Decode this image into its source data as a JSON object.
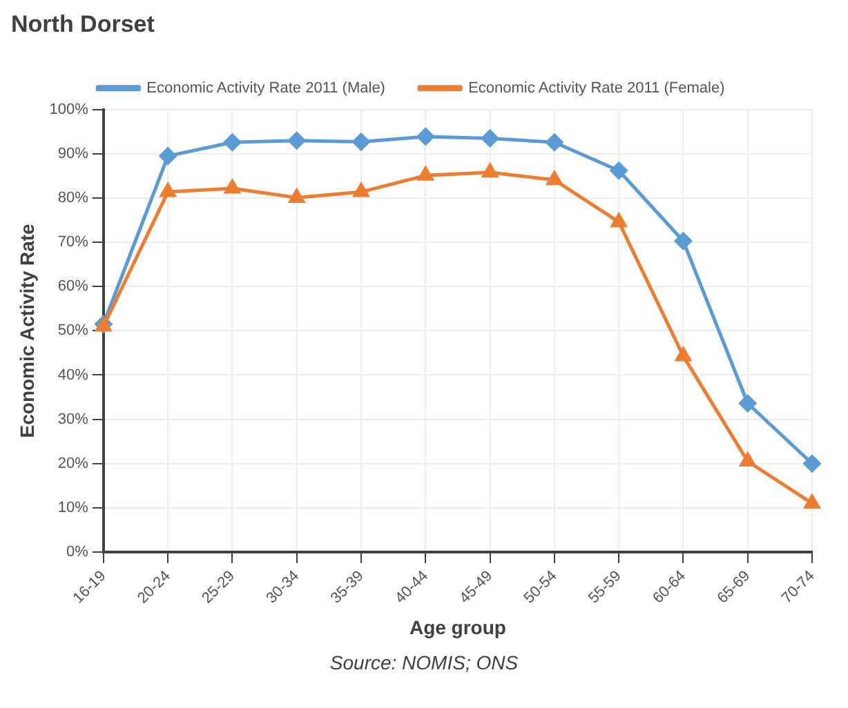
{
  "chart_data": {
    "type": "line",
    "title": "North Dorset",
    "xlabel": "Age group",
    "ylabel": "Economic Activity Rate",
    "annotations": [
      "Source: NOMIS; ONS"
    ],
    "categories": [
      "16-19",
      "20-24",
      "25-29",
      "30-34",
      "35-39",
      "40-44",
      "45-49",
      "50-54",
      "55-59",
      "60-64",
      "65-69",
      "70-74"
    ],
    "series": [
      {
        "name": "Economic Activity Rate 2011 (Male)",
        "color": "#5b9bd5",
        "marker": "diamond",
        "values": [
          51.5,
          89.5,
          92.6,
          93,
          92.7,
          93.9,
          93.5,
          92.6,
          86.2,
          70.3,
          33.6,
          20
        ]
      },
      {
        "name": "Economic Activity Rate 2011 (Female)",
        "color": "#ed7d31",
        "marker": "triangle",
        "values": [
          51,
          81.4,
          82.2,
          80.1,
          81.4,
          85.1,
          85.8,
          84.1,
          74.6,
          44.3,
          20.5,
          11
        ]
      }
    ],
    "ylim": [
      0,
      100
    ],
    "yticks": [
      {
        "value": 0,
        "label": "0%"
      },
      {
        "value": 10,
        "label": "10%"
      },
      {
        "value": 20,
        "label": "20%"
      },
      {
        "value": 30,
        "label": "30%"
      },
      {
        "value": 40,
        "label": "40%"
      },
      {
        "value": 50,
        "label": "50%"
      },
      {
        "value": 60,
        "label": "60%"
      },
      {
        "value": 70,
        "label": "70%"
      },
      {
        "value": 80,
        "label": "80%"
      },
      {
        "value": 90,
        "label": "90%"
      },
      {
        "value": 100,
        "label": "100%"
      }
    ],
    "grid": true,
    "legend": "top",
    "line_style": "solid"
  }
}
